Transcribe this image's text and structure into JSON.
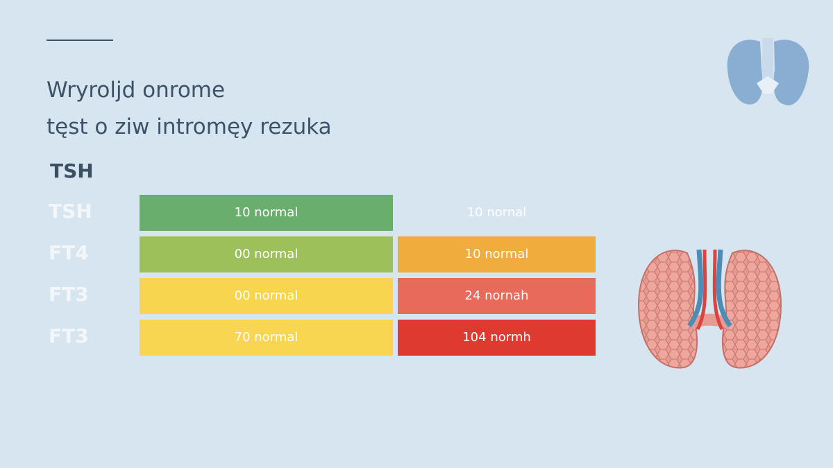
{
  "header": {
    "title_lines": [
      "Wryroljd onrome",
      "tęst o ziw intromęy rezuka"
    ]
  },
  "section_label": "TSH",
  "table": {
    "rows": [
      [
        "TSH",
        "10 normal",
        "10 nornal"
      ],
      [
        "FT4",
        "00 normal",
        "10 normal"
      ],
      [
        "FT3",
        "00 normal",
        "24 nornah"
      ],
      [
        "FT3",
        "70 normal",
        "104 normh"
      ]
    ]
  }
}
